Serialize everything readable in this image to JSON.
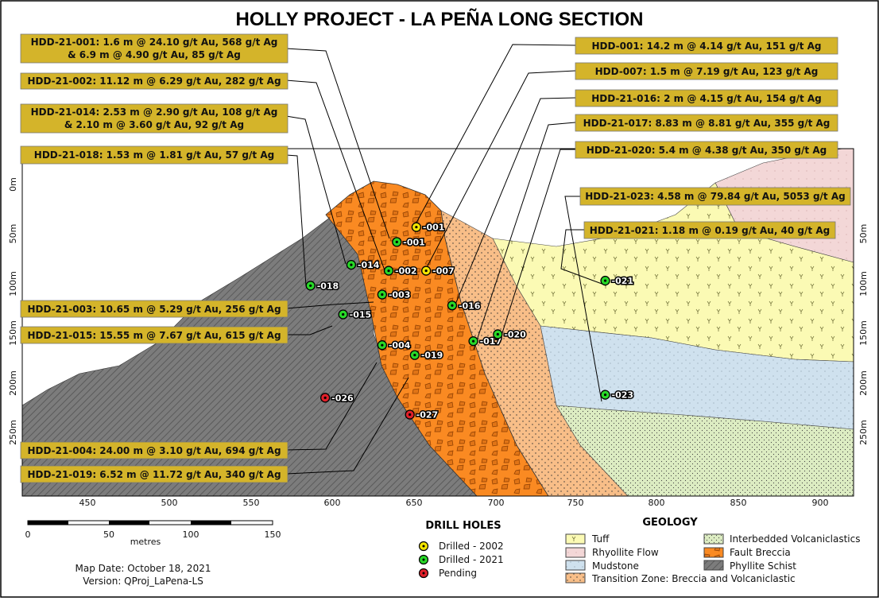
{
  "title": "HOLLY PROJECT  - LA PEÑA LONG SECTION",
  "colors": {
    "tuff": "#fbfab4",
    "rhyolite": "#f3d7d7",
    "mudstone": "#cfe1ee",
    "transition": "#f8be88",
    "interbedded": "#dcecc2",
    "fault_breccia": "#fa8a22",
    "phyllite": "#7c7c7c",
    "label_box": "#d4b42a",
    "drilled_2002": "#f4e600",
    "drilled_2021": "#28d828",
    "pending": "#e0202a"
  },
  "depth_axis": {
    "unit": "m",
    "ticks": [
      "0m",
      "50m",
      "100m",
      "150m",
      "200m",
      "250m"
    ]
  },
  "easting_axis": {
    "ticks": [
      "450",
      "500",
      "550",
      "600",
      "650",
      "700",
      "750",
      "800",
      "850",
      "900"
    ]
  },
  "scale_bar": {
    "ticks": [
      "0",
      "50",
      "100",
      "150"
    ],
    "unit": "metres"
  },
  "drill_holes": [
    {
      "id": "-001",
      "status": "2002",
      "easting": 652,
      "depth": 43
    },
    {
      "id": "-001",
      "status": "2021",
      "easting": 640,
      "depth": 58
    },
    {
      "id": "-002",
      "status": "2021",
      "easting": 635,
      "depth": 87
    },
    {
      "id": "-007",
      "status": "2002",
      "easting": 658,
      "depth": 87
    },
    {
      "id": "-014",
      "status": "2021",
      "easting": 612,
      "depth": 81
    },
    {
      "id": "-018",
      "status": "2021",
      "easting": 587,
      "depth": 102
    },
    {
      "id": "-003",
      "status": "2021",
      "easting": 631,
      "depth": 111
    },
    {
      "id": "-015",
      "status": "2021",
      "easting": 607,
      "depth": 131
    },
    {
      "id": "-016",
      "status": "2021",
      "easting": 674,
      "depth": 122
    },
    {
      "id": "-017",
      "status": "2021",
      "easting": 687,
      "depth": 158
    },
    {
      "id": "-020",
      "status": "2021",
      "easting": 702,
      "depth": 151
    },
    {
      "id": "-004",
      "status": "2021",
      "easting": 631,
      "depth": 162
    },
    {
      "id": "-019",
      "status": "2021",
      "easting": 651,
      "depth": 172
    },
    {
      "id": "-021",
      "status": "2021",
      "easting": 768,
      "depth": 97
    },
    {
      "id": "-023",
      "status": "2021",
      "easting": 768,
      "depth": 212
    },
    {
      "id": "-026",
      "status": "pending",
      "easting": 596,
      "depth": 215
    },
    {
      "id": "-027",
      "status": "pending",
      "easting": 648,
      "depth": 232
    }
  ],
  "intercepts": [
    {
      "lines": [
        "HDD-21-001: 1.6 m @ 24.10 g/t Au, 568 g/t Ag",
        "& 6.9 m @ 4.90 g/t Au, 85 g/t Ag"
      ],
      "hole": "-001 (2021)"
    },
    {
      "lines": [
        "HDD-21-002: 11.12 m @ 6.29 g/t Au, 282 g/t Ag"
      ],
      "hole": "-002"
    },
    {
      "lines": [
        "HDD-21-014: 2.53 m @ 2.90 g/t Au, 108 g/t Ag",
        "& 2.10 m @ 3.60 g/t Au, 92 g/t Ag"
      ],
      "hole": "-014"
    },
    {
      "lines": [
        "HDD-21-018: 1.53 m @ 1.81 g/t Au, 57 g/t Ag"
      ],
      "hole": "-018"
    },
    {
      "lines": [
        "HDD-21-003: 10.65 m @ 5.29 g/t Au, 256 g/t Ag"
      ],
      "hole": "-003"
    },
    {
      "lines": [
        "HDD-21-015: 15.55 m @ 7.67 g/t Au, 615 g/t Ag"
      ],
      "hole": "-015"
    },
    {
      "lines": [
        "HDD-21-004: 24.00 m @ 3.10 g/t Au, 694 g/t Ag"
      ],
      "hole": "-004"
    },
    {
      "lines": [
        "HDD-21-019: 6.52 m @ 11.72 g/t Au, 340 g/t Ag"
      ],
      "hole": "-019"
    },
    {
      "lines": [
        "HDD-001: 14.2 m @ 4.14 g/t Au, 151 g/t Ag"
      ],
      "hole": "-001 (2002)"
    },
    {
      "lines": [
        "HDD-007: 1.5 m @ 7.19 g/t Au, 123 g/t Ag"
      ],
      "hole": "-007"
    },
    {
      "lines": [
        "HDD-21-016: 2 m @ 4.15 g/t Au, 154 g/t Ag"
      ],
      "hole": "-016"
    },
    {
      "lines": [
        "HDD-21-017: 8.83 m @ 8.81 g/t Au, 355 g/t Ag"
      ],
      "hole": "-017"
    },
    {
      "lines": [
        "HDD-21-020: 5.4 m @ 4.38 g/t Au, 350 g/t Ag"
      ],
      "hole": "-020"
    },
    {
      "lines": [
        "HDD-21-023: 4.58 m @ 79.84 g/t Au, 5053 g/t Ag"
      ],
      "hole": "-023"
    },
    {
      "lines": [
        "HDD-21-021: 1.18 m @ 0.19 g/t Au, 40 g/t Ag"
      ],
      "hole": "-021"
    }
  ],
  "drill_legend": {
    "title": "DRILL HOLES",
    "items": [
      "Drilled - 2002",
      "Drilled - 2021",
      "Pending"
    ]
  },
  "geology_legend": {
    "title": "GEOLOGY",
    "items": [
      "Tuff",
      "Rhyollite Flow",
      "Mudstone",
      "Transition Zone: Breccia and Volcaniclastic",
      "Interbedded Volcaniclastics",
      "Fault Breccia",
      "Phyllite Schist"
    ]
  },
  "footer": {
    "map_date": "Map Date: October 18, 2021",
    "version": "Version: QProj_LaPena-LS"
  }
}
